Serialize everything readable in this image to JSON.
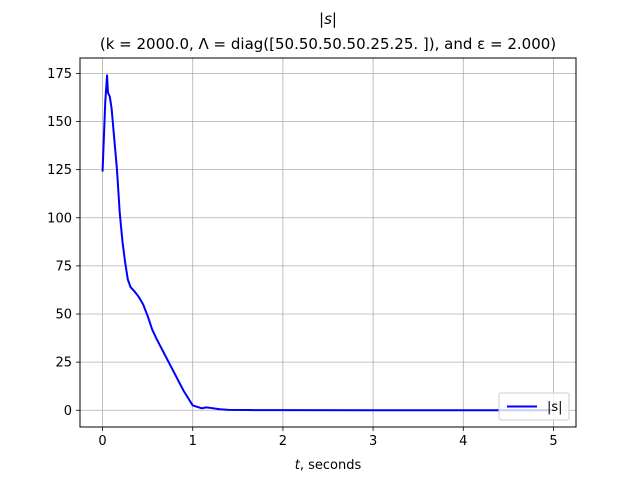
{
  "chart_data": {
    "type": "line",
    "title": "|s|",
    "subtitle": "(k = 2000.0, Λ = diag([50.50.50.50.25.25. ]), and ε = 2.000)",
    "xlabel": "t, seconds",
    "ylabel": "",
    "xlim": [
      -0.25,
      5.25
    ],
    "ylim": [
      -8.7,
      183.0
    ],
    "xticks": [
      0,
      1,
      2,
      3,
      4,
      5
    ],
    "yticks": [
      0,
      25,
      50,
      75,
      100,
      125,
      150,
      175
    ],
    "grid": true,
    "legend_position": "bottom-right",
    "series": [
      {
        "name": "|s|",
        "color": "#0000ff",
        "x": [
          0.0,
          0.03,
          0.05,
          0.06,
          0.08,
          0.1,
          0.13,
          0.16,
          0.19,
          0.22,
          0.25,
          0.28,
          0.31,
          0.35,
          0.4,
          0.45,
          0.5,
          0.55,
          0.6,
          0.7,
          0.8,
          0.9,
          1.0,
          1.1,
          1.15,
          1.2,
          1.3,
          1.4,
          1.6,
          2.0,
          3.0,
          4.0,
          5.0
        ],
        "y": [
          124,
          160,
          174,
          165,
          163,
          157,
          141,
          125,
          103,
          88,
          77,
          68,
          64,
          62,
          59,
          55,
          49,
          42,
          37,
          28,
          19,
          10,
          2.5,
          1.0,
          1.5,
          1.2,
          0.5,
          0.2,
          0.1,
          0.05,
          0.02,
          0.01,
          0.01
        ]
      }
    ]
  }
}
